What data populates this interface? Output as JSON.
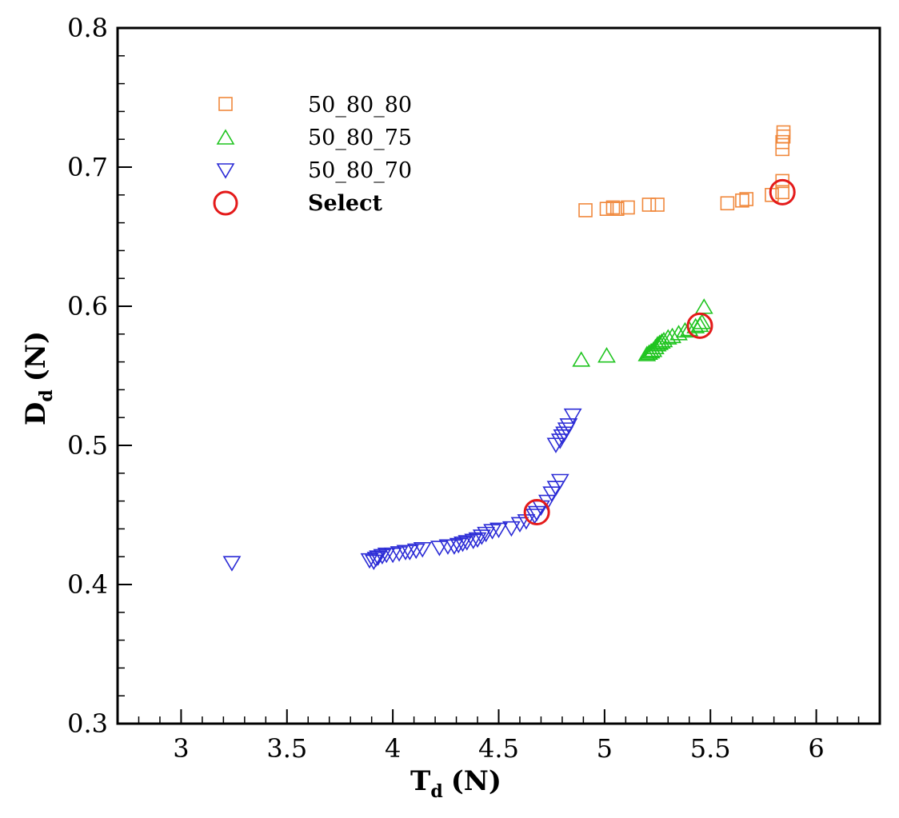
{
  "chart_data": {
    "type": "scatter",
    "title": "",
    "xlabel": {
      "main": "T",
      "sub": "d",
      "unit": "(N)"
    },
    "ylabel": {
      "main": "D",
      "sub": "d",
      "unit": "(N)"
    },
    "xlim": [
      2.7,
      6.3
    ],
    "ylim": [
      0.3,
      0.8
    ],
    "x_ticks": [
      3,
      3.5,
      4,
      4.5,
      5,
      5.5,
      6
    ],
    "x_tick_labels": [
      "3",
      "3.5",
      "4",
      "4.5",
      "5",
      "5.5",
      "6"
    ],
    "y_ticks": [
      0.3,
      0.4,
      0.5,
      0.6,
      0.7,
      0.8
    ],
    "y_tick_labels": [
      "0.3",
      "0.4",
      "0.5",
      "0.6",
      "0.7",
      "0.8"
    ],
    "x_minor_step": 0.1,
    "y_minor_step": 0.02,
    "grid": false,
    "legend_position": "top-left",
    "series": [
      {
        "name": "50_80_80",
        "marker": "square",
        "color": "#f0883c",
        "points": [
          [
            4.91,
            0.669
          ],
          [
            5.01,
            0.67
          ],
          [
            5.04,
            0.671
          ],
          [
            5.06,
            0.67
          ],
          [
            5.11,
            0.671
          ],
          [
            5.21,
            0.673
          ],
          [
            5.25,
            0.673
          ],
          [
            5.58,
            0.674
          ],
          [
            5.65,
            0.676
          ],
          [
            5.67,
            0.677
          ],
          [
            5.79,
            0.68
          ],
          [
            5.84,
            0.682
          ],
          [
            5.84,
            0.69
          ],
          [
            5.84,
            0.713
          ],
          [
            5.84,
            0.718
          ],
          [
            5.845,
            0.722
          ],
          [
            5.845,
            0.725
          ]
        ]
      },
      {
        "name": "50_80_75",
        "marker": "triangle-up",
        "color": "#1fc41f",
        "points": [
          [
            4.89,
            0.561
          ],
          [
            5.01,
            0.564
          ],
          [
            5.2,
            0.565
          ],
          [
            5.21,
            0.566
          ],
          [
            5.22,
            0.567
          ],
          [
            5.23,
            0.568
          ],
          [
            5.24,
            0.57
          ],
          [
            5.25,
            0.572
          ],
          [
            5.26,
            0.573
          ],
          [
            5.27,
            0.574
          ],
          [
            5.28,
            0.575
          ],
          [
            5.3,
            0.577
          ],
          [
            5.32,
            0.578
          ],
          [
            5.35,
            0.58
          ],
          [
            5.38,
            0.582
          ],
          [
            5.4,
            0.583
          ],
          [
            5.43,
            0.585
          ],
          [
            5.45,
            0.586
          ],
          [
            5.46,
            0.588
          ],
          [
            5.47,
            0.599
          ]
        ]
      },
      {
        "name": "50_80_70",
        "marker": "triangle-down",
        "color": "#2b2bd6",
        "points": [
          [
            3.24,
            0.416
          ],
          [
            3.89,
            0.418
          ],
          [
            3.91,
            0.417
          ],
          [
            3.92,
            0.419
          ],
          [
            3.93,
            0.42
          ],
          [
            3.95,
            0.421
          ],
          [
            3.97,
            0.422
          ],
          [
            4.0,
            0.422
          ],
          [
            4.03,
            0.423
          ],
          [
            4.06,
            0.424
          ],
          [
            4.08,
            0.424
          ],
          [
            4.11,
            0.425
          ],
          [
            4.14,
            0.426
          ],
          [
            4.22,
            0.427
          ],
          [
            4.26,
            0.428
          ],
          [
            4.29,
            0.428
          ],
          [
            4.31,
            0.429
          ],
          [
            4.33,
            0.43
          ],
          [
            4.35,
            0.431
          ],
          [
            4.38,
            0.432
          ],
          [
            4.4,
            0.433
          ],
          [
            4.42,
            0.435
          ],
          [
            4.44,
            0.437
          ],
          [
            4.47,
            0.439
          ],
          [
            4.5,
            0.44
          ],
          [
            4.56,
            0.441
          ],
          [
            4.6,
            0.444
          ],
          [
            4.63,
            0.446
          ],
          [
            4.67,
            0.45
          ],
          [
            4.68,
            0.452
          ],
          [
            4.7,
            0.456
          ],
          [
            4.73,
            0.46
          ],
          [
            4.75,
            0.466
          ],
          [
            4.77,
            0.47
          ],
          [
            4.79,
            0.475
          ],
          [
            4.77,
            0.501
          ],
          [
            4.79,
            0.504
          ],
          [
            4.8,
            0.507
          ],
          [
            4.81,
            0.509
          ],
          [
            4.82,
            0.512
          ],
          [
            4.83,
            0.515
          ],
          [
            4.85,
            0.522
          ]
        ]
      }
    ],
    "selected": {
      "name": "Select",
      "marker": "circle",
      "color": "#e41a1a",
      "points": [
        [
          4.68,
          0.452
        ],
        [
          5.45,
          0.586
        ],
        [
          5.84,
          0.682
        ]
      ]
    }
  }
}
